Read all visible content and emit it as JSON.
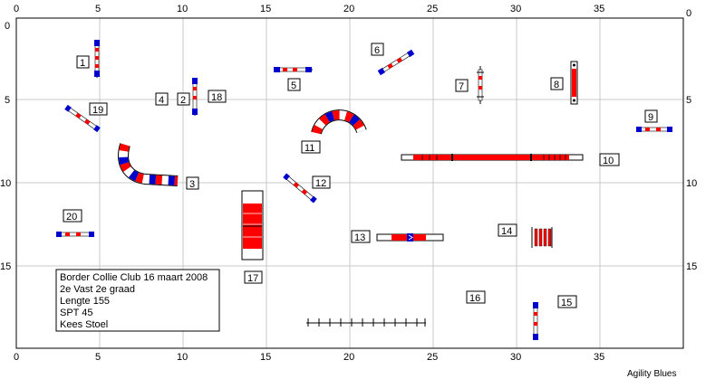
{
  "axes": {
    "x_ticks": [
      "0",
      "5",
      "10",
      "15",
      "20",
      "25",
      "30",
      "35"
    ],
    "y_ticks": [
      "0",
      "5",
      "10",
      "15"
    ]
  },
  "labels": [
    "1",
    "2",
    "3",
    "4",
    "5",
    "6",
    "7",
    "8",
    "9",
    "10",
    "11",
    "12",
    "13",
    "14",
    "15",
    "16",
    "17",
    "18",
    "19",
    "20"
  ],
  "info": {
    "lines": [
      "Border Collie Club 16 maart 2008",
      "2e Vast 2e graad",
      "Lengte 155",
      "SPT 45",
      "Kees Stoel"
    ]
  },
  "credit": "Agility Blues",
  "colors": {
    "red": "#ff0000",
    "blue": "#0000cc",
    "white": "#ffffff",
    "grid": "#c8c8c8"
  }
}
